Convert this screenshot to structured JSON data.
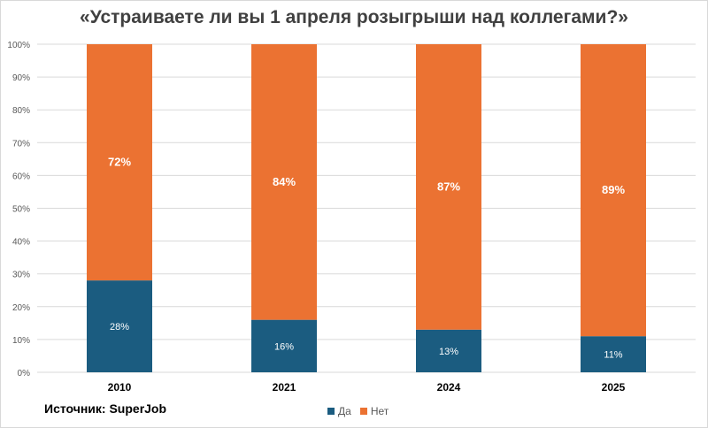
{
  "title": "«Устраиваете ли вы 1 апреля розыгрыши над коллегами?»",
  "source": "Источник: SuperJob",
  "colors": {
    "da": "#1b5c80",
    "net": "#eb7232",
    "grid": "#d9d9d9",
    "axis_text": "#595959"
  },
  "chart_data": {
    "type": "bar",
    "stacked": true,
    "title": "«Устраиваете ли вы 1 апреля розыгрыши над коллегами?»",
    "categories": [
      "2010",
      "2021",
      "2024",
      "2025"
    ],
    "series": [
      {
        "name": "Да",
        "values": [
          28,
          16,
          13,
          11
        ],
        "labels": [
          "28%",
          "16%",
          "13%",
          "11%"
        ]
      },
      {
        "name": "Нет",
        "values": [
          72,
          84,
          87,
          89
        ],
        "labels": [
          "72%",
          "84%",
          "87%",
          "89%"
        ]
      }
    ],
    "ylim": [
      0,
      100
    ],
    "yticks": [
      "0%",
      "10%",
      "20%",
      "30%",
      "40%",
      "50%",
      "60%",
      "70%",
      "80%",
      "90%",
      "100%"
    ],
    "grid": true,
    "legend": "bottom"
  }
}
